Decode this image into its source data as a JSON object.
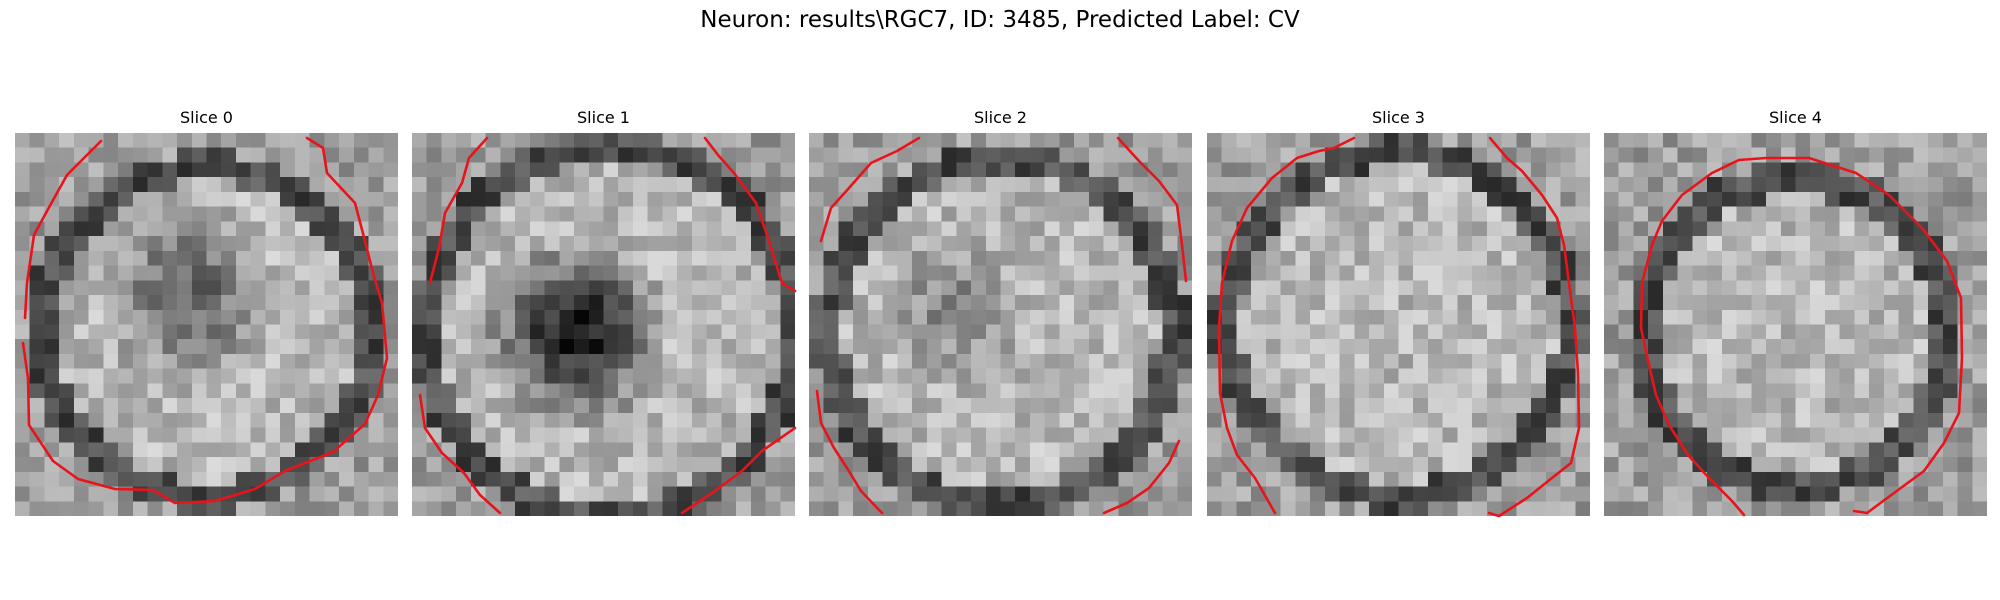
{
  "figure": {
    "title": "Neuron: results\\RGC7, ID: 3485, Predicted Label: CV"
  },
  "colors": {
    "contour": "#e8141c",
    "colormap": "gray"
  },
  "slices": [
    {
      "title": "Slice 0"
    },
    {
      "title": "Slice 1"
    },
    {
      "title": "Slice 2"
    },
    {
      "title": "Slice 3"
    },
    {
      "title": "Slice 4"
    }
  ]
}
